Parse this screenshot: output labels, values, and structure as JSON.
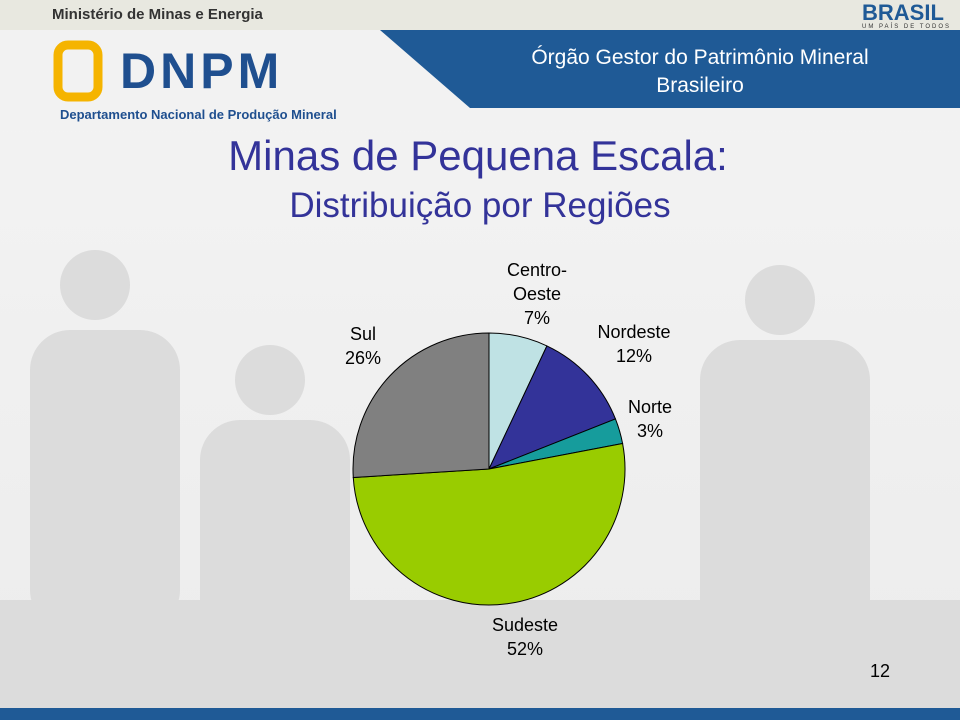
{
  "header": {
    "ministry": "Ministério de Minas e Energia",
    "logo": "DNPM",
    "department": "Departamento Nacional de Produção Mineral",
    "tagline": "Órgão Gestor do Patrimônio Mineral Brasileiro",
    "brand": "BRASIL",
    "brand_motto": "UM PAÍS DE TODOS"
  },
  "chart_data": {
    "type": "pie",
    "title": "Minas de Pequena Escala:",
    "subtitle": "Distribuição por Regiões",
    "categories": [
      "Centro-Oeste",
      "Nordeste",
      "Norte",
      "Sudeste",
      "Sul"
    ],
    "values": [
      7,
      12,
      3,
      52,
      26
    ],
    "value_labels": [
      "7%",
      "12%",
      "3%",
      "52%",
      "26%"
    ],
    "colors": [
      "#bfe2e4",
      "#333399",
      "#169c9c",
      "#99cc00",
      "#808080"
    ]
  },
  "page_number": 12
}
